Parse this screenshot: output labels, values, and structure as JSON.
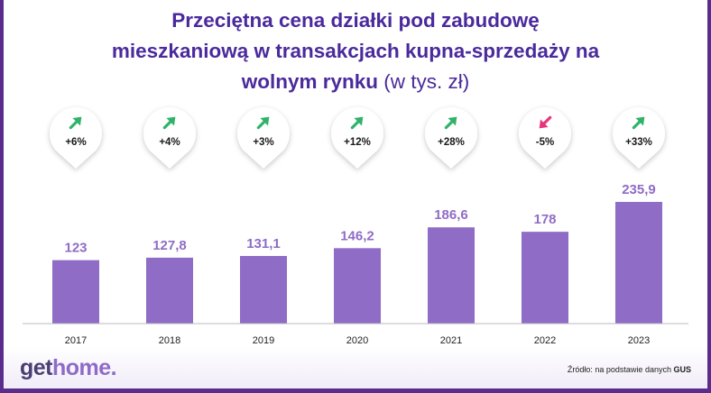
{
  "title": {
    "line1": "Przeciętna cena działki pod zabudowę",
    "line2": "mieszkaniową w transakcjach kupna-sprzedaży na",
    "line3_bold": "wolnym rynku",
    "line3_unit": "(w tys. zł)"
  },
  "chart_data": {
    "type": "bar",
    "categories": [
      "2017",
      "2018",
      "2019",
      "2020",
      "2021",
      "2022",
      "2023"
    ],
    "values": [
      123,
      127.8,
      131.1,
      146.2,
      186.6,
      178,
      235.9
    ],
    "value_labels": [
      "123",
      "127,8",
      "131,1",
      "146,2",
      "186,6",
      "178",
      "235,9"
    ],
    "changes": [
      "+6%",
      "+4%",
      "+3%",
      "+12%",
      "+28%",
      "-5%",
      "+33%"
    ],
    "change_directions": [
      "up",
      "up",
      "up",
      "up",
      "up",
      "down",
      "up"
    ],
    "title": "Przeciętna cena działki pod zabudowę mieszkaniową w transakcjach kupna-sprzedaży na wolnym rynku (w tys. zł)",
    "xlabel": "",
    "ylabel": "",
    "ylim": [
      0,
      260
    ],
    "bar_color": "#8f6cc6",
    "up_arrow_color": "#2fb36a",
    "down_arrow_color": "#e8347c",
    "grid": false,
    "legend": "none"
  },
  "footer": {
    "logo_get": "get",
    "logo_home": "home.",
    "source_text": "Źródło: na podstawie danych",
    "source_bold": "GUS"
  }
}
